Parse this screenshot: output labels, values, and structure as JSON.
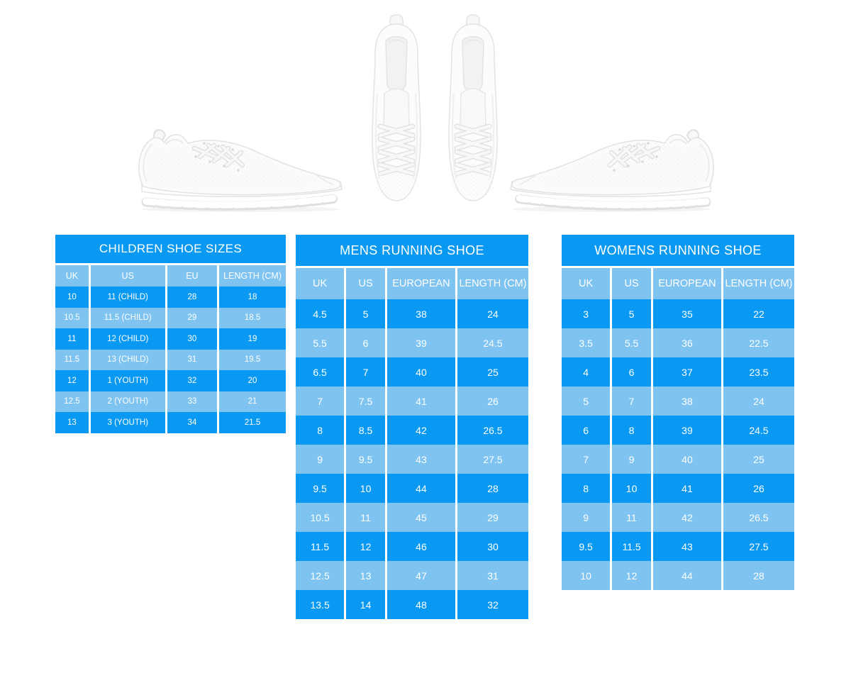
{
  "colors": {
    "page_background": "#ffffff",
    "table_dark_blue": "#0999f2",
    "table_light_blue": "#7fc3f0",
    "table_text": "#ffffff"
  },
  "images": {
    "left": "white-sneaker-side-view-toe-right",
    "center": "white-sneaker-pair-top-view",
    "right": "white-sneaker-side-view-toe-left"
  },
  "chart_data": [
    {
      "type": "table",
      "title": "CHILDREN SHOE SIZES",
      "columns": [
        "UK",
        "US",
        "EU",
        "LENGTH (CM)"
      ],
      "rows": [
        [
          "10",
          "11 (CHILD)",
          "28",
          "18"
        ],
        [
          "10.5",
          "11.5 (CHILD)",
          "29",
          "18.5"
        ],
        [
          "11",
          "12 (CHILD)",
          "30",
          "19"
        ],
        [
          "11.5",
          "13 (CHILD)",
          "31",
          "19.5"
        ],
        [
          "12",
          "1 (YOUTH)",
          "32",
          "20"
        ],
        [
          "12.5",
          "2 (YOUTH)",
          "33",
          "21"
        ],
        [
          "13",
          "3 (YOUTH)",
          "34",
          "21.5"
        ]
      ]
    },
    {
      "type": "table",
      "title": "MENS RUNNING SHOE",
      "columns": [
        "UK",
        "US",
        "EUROPEAN",
        "LENGTH (CM)"
      ],
      "rows": [
        [
          "4.5",
          "5",
          "38",
          "24"
        ],
        [
          "5.5",
          "6",
          "39",
          "24.5"
        ],
        [
          "6.5",
          "7",
          "40",
          "25"
        ],
        [
          "7",
          "7.5",
          "41",
          "26"
        ],
        [
          "8",
          "8.5",
          "42",
          "26.5"
        ],
        [
          "9",
          "9.5",
          "43",
          "27.5"
        ],
        [
          "9.5",
          "10",
          "44",
          "28"
        ],
        [
          "10.5",
          "11",
          "45",
          "29"
        ],
        [
          "11.5",
          "12",
          "46",
          "30"
        ],
        [
          "12.5",
          "13",
          "47",
          "31"
        ],
        [
          "13.5",
          "14",
          "48",
          "32"
        ]
      ]
    },
    {
      "type": "table",
      "title": "WOMENS RUNNING SHOE",
      "columns": [
        "UK",
        "US",
        "EUROPEAN",
        "LENGTH (CM)"
      ],
      "rows": [
        [
          "3",
          "5",
          "35",
          "22"
        ],
        [
          "3.5",
          "5.5",
          "36",
          "22.5"
        ],
        [
          "4",
          "6",
          "37",
          "23.5"
        ],
        [
          "5",
          "7",
          "38",
          "24"
        ],
        [
          "6",
          "8",
          "39",
          "24.5"
        ],
        [
          "7",
          "9",
          "40",
          "25"
        ],
        [
          "8",
          "10",
          "41",
          "26"
        ],
        [
          "9",
          "11",
          "42",
          "26.5"
        ],
        [
          "9.5",
          "11.5",
          "43",
          "27.5"
        ],
        [
          "10",
          "12",
          "44",
          "28"
        ]
      ]
    }
  ]
}
